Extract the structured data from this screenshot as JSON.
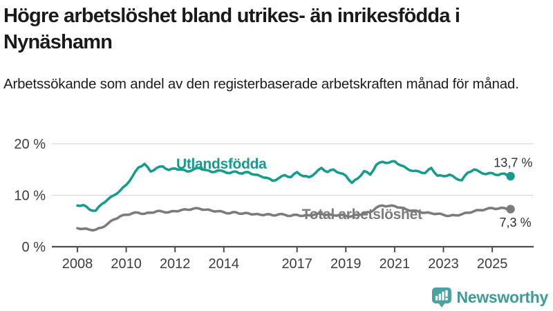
{
  "header": {
    "title_line1": "Högre arbetslöshet bland utrikes- än inrikesfödda i",
    "title_line2": "Nynäshamn",
    "subtitle": "Arbetssökande som andel av den registerbaserade arbetskraften månad för månad."
  },
  "footer": {
    "brand": "Newsworthy"
  },
  "colors": {
    "teal_line": "#169b8c",
    "gray_line": "#7b7b7e",
    "value_label": "#2e2e2e",
    "axis": "#4c4c4c",
    "grid": "#d9d9d9",
    "tick_label": "#3d3d3d",
    "logo_bubble": "#4aa3a0",
    "logo_text": "#3f9b98"
  },
  "chart_data": {
    "type": "line",
    "title": "Högre arbetslöshet bland utrikes- än inrikesfödda i Nynäshamn",
    "subtitle": "Arbetssökande som andel av den registerbaserade arbetskraften månad för månad.",
    "xlabel": "",
    "ylabel": "",
    "ylim": [
      0,
      20
    ],
    "xlim": [
      2008,
      2026.8
    ],
    "x_start": 2008,
    "x_step": 0.25,
    "grid": "horizontal",
    "legend_position": "inline-labels",
    "y_ticks": [
      {
        "v": 20,
        "label": "20 %"
      },
      {
        "v": 10,
        "label": "10 %"
      },
      {
        "v": 0,
        "label": "0 %"
      }
    ],
    "x_ticks": [
      {
        "t": 2008,
        "label": "2008"
      },
      {
        "t": 2010,
        "label": "2010"
      },
      {
        "t": 2012,
        "label": "2012"
      },
      {
        "t": 2014,
        "label": "2014"
      },
      {
        "t": 2017,
        "label": "2017"
      },
      {
        "t": 2019,
        "label": "2019"
      },
      {
        "t": 2021,
        "label": "2021"
      },
      {
        "t": 2023,
        "label": "2023"
      },
      {
        "t": 2025,
        "label": "2025"
      }
    ],
    "series": [
      {
        "name": "Utlandsfödda",
        "color": "#169b8c",
        "end_value": 13.7,
        "values": [
          8.0,
          8.1,
          7.2,
          7.0,
          8.3,
          9.2,
          10.0,
          10.9,
          12.0,
          13.6,
          15.4,
          16.1,
          14.6,
          15.3,
          15.6,
          14.9,
          15.2,
          15.0,
          14.6,
          15.0,
          15.3,
          14.9,
          14.5,
          14.8,
          14.6,
          14.3,
          14.6,
          14.2,
          14.5,
          14.0,
          13.7,
          13.4,
          12.8,
          13.3,
          13.9,
          13.5,
          14.5,
          13.7,
          13.5,
          14.3,
          15.3,
          14.5,
          15.0,
          14.3,
          13.8,
          12.4,
          13.3,
          14.7,
          14.0,
          15.9,
          16.5,
          16.3,
          16.6,
          15.8,
          15.2,
          14.7,
          14.6,
          14.3,
          15.3,
          13.8,
          13.7,
          14.0,
          13.3,
          12.9,
          14.4,
          15.0,
          14.5,
          14.1,
          14.3,
          13.9,
          14.2,
          13.7
        ]
      },
      {
        "name": "Total arbetslöshet",
        "color": "#7b7b7e",
        "end_value": 7.3,
        "values": [
          3.6,
          3.5,
          3.3,
          3.3,
          3.7,
          4.5,
          5.3,
          5.9,
          6.2,
          6.5,
          6.6,
          6.4,
          6.6,
          6.9,
          6.8,
          6.7,
          6.9,
          7.1,
          7.2,
          7.4,
          7.4,
          7.2,
          7.0,
          6.9,
          6.7,
          6.5,
          6.7,
          6.4,
          6.5,
          6.3,
          6.2,
          6.3,
          6.1,
          6.3,
          6.2,
          6.0,
          6.2,
          6.0,
          6.1,
          6.3,
          6.4,
          6.2,
          6.1,
          6.2,
          6.0,
          5.9,
          6.2,
          6.5,
          6.7,
          7.6,
          8.0,
          7.9,
          7.9,
          7.6,
          7.2,
          7.0,
          6.8,
          6.6,
          6.5,
          6.4,
          6.2,
          6.0,
          6.1,
          6.3,
          6.6,
          6.9,
          7.1,
          7.3,
          7.5,
          7.4,
          7.5,
          7.3
        ]
      }
    ],
    "annotations": [
      {
        "text": "Utlandsfödda",
        "x": 2012.05,
        "v": 15.15,
        "color": "#169b8c",
        "size": 21,
        "weight": "bold",
        "anchor": "start",
        "name": "series-label-utlandsfodda"
      },
      {
        "text": "Total arbetslöshet",
        "x": 2017.2,
        "v": 5.35,
        "color": "#7b7b7e",
        "size": 21,
        "weight": "bold",
        "anchor": "start",
        "name": "series-label-total"
      },
      {
        "text": "13,7 %",
        "x": 2026.65,
        "v": 15.5,
        "color": "#2e2e2e",
        "size": 18,
        "weight": "normal",
        "anchor": "end",
        "name": "end-value-label-utlandsfodda"
      },
      {
        "text": "7,3 %",
        "x": 2026.6,
        "v": 3.9,
        "color": "#2e2e2e",
        "size": 18,
        "weight": "normal",
        "anchor": "end",
        "name": "end-value-label-total"
      }
    ]
  }
}
